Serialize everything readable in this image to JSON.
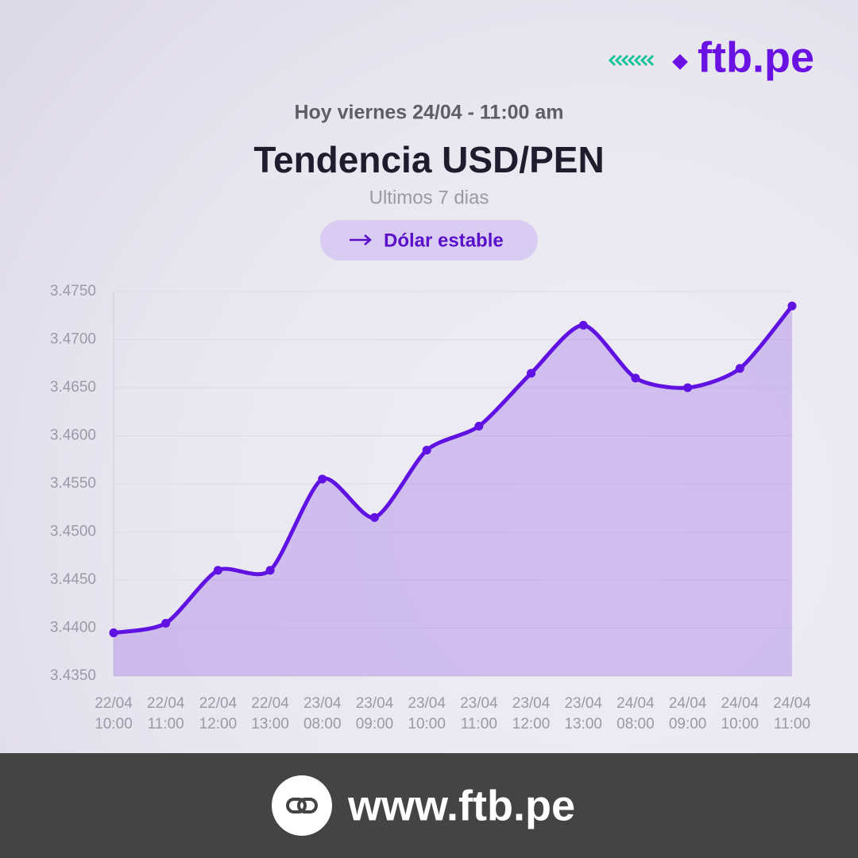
{
  "header": {
    "logo": "ftb.pe",
    "date": "Hoy viernes 24/04 - 11:00 am",
    "badge": "Dólar estable"
  },
  "chart_data": {
    "type": "line",
    "title": "Tendencia USD/PEN",
    "subtitle": "Ultimos 7 dias",
    "categories": [
      [
        "22/04",
        "10:00"
      ],
      [
        "22/04",
        "11:00"
      ],
      [
        "22/04",
        "12:00"
      ],
      [
        "22/04",
        "13:00"
      ],
      [
        "23/04",
        "08:00"
      ],
      [
        "23/04",
        "09:00"
      ],
      [
        "23/04",
        "10:00"
      ],
      [
        "23/04",
        "11:00"
      ],
      [
        "23/04",
        "12:00"
      ],
      [
        "23/04",
        "13:00"
      ],
      [
        "24/04",
        "08:00"
      ],
      [
        "24/04",
        "09:00"
      ],
      [
        "24/04",
        "10:00"
      ],
      [
        "24/04",
        "11:00"
      ]
    ],
    "series": [
      {
        "color": "#6012e2",
        "values": [
          3.4395,
          3.4405,
          3.446,
          3.446,
          3.4555,
          3.4515,
          3.4585,
          3.461,
          3.4665,
          3.4715,
          3.466,
          3.465,
          3.467,
          3.4735
        ]
      }
    ],
    "ylim": [
      3.435,
      3.475
    ],
    "yticks": [
      {
        "value": 3.435,
        "label": "3.4350"
      },
      {
        "value": 3.44,
        "label": "3.4400"
      },
      {
        "value": 3.445,
        "label": "3.4450"
      },
      {
        "value": 3.45,
        "label": "3.4500"
      },
      {
        "value": 3.455,
        "label": "3.4550"
      },
      {
        "value": 3.46,
        "label": "3.4600"
      },
      {
        "value": 3.465,
        "label": "3.4650"
      },
      {
        "value": 3.47,
        "label": "3.4700"
      },
      {
        "value": 3.475,
        "label": "3.4750"
      }
    ],
    "grid": true,
    "area": true
  },
  "footer": {
    "url": "www.ftb.pe"
  }
}
